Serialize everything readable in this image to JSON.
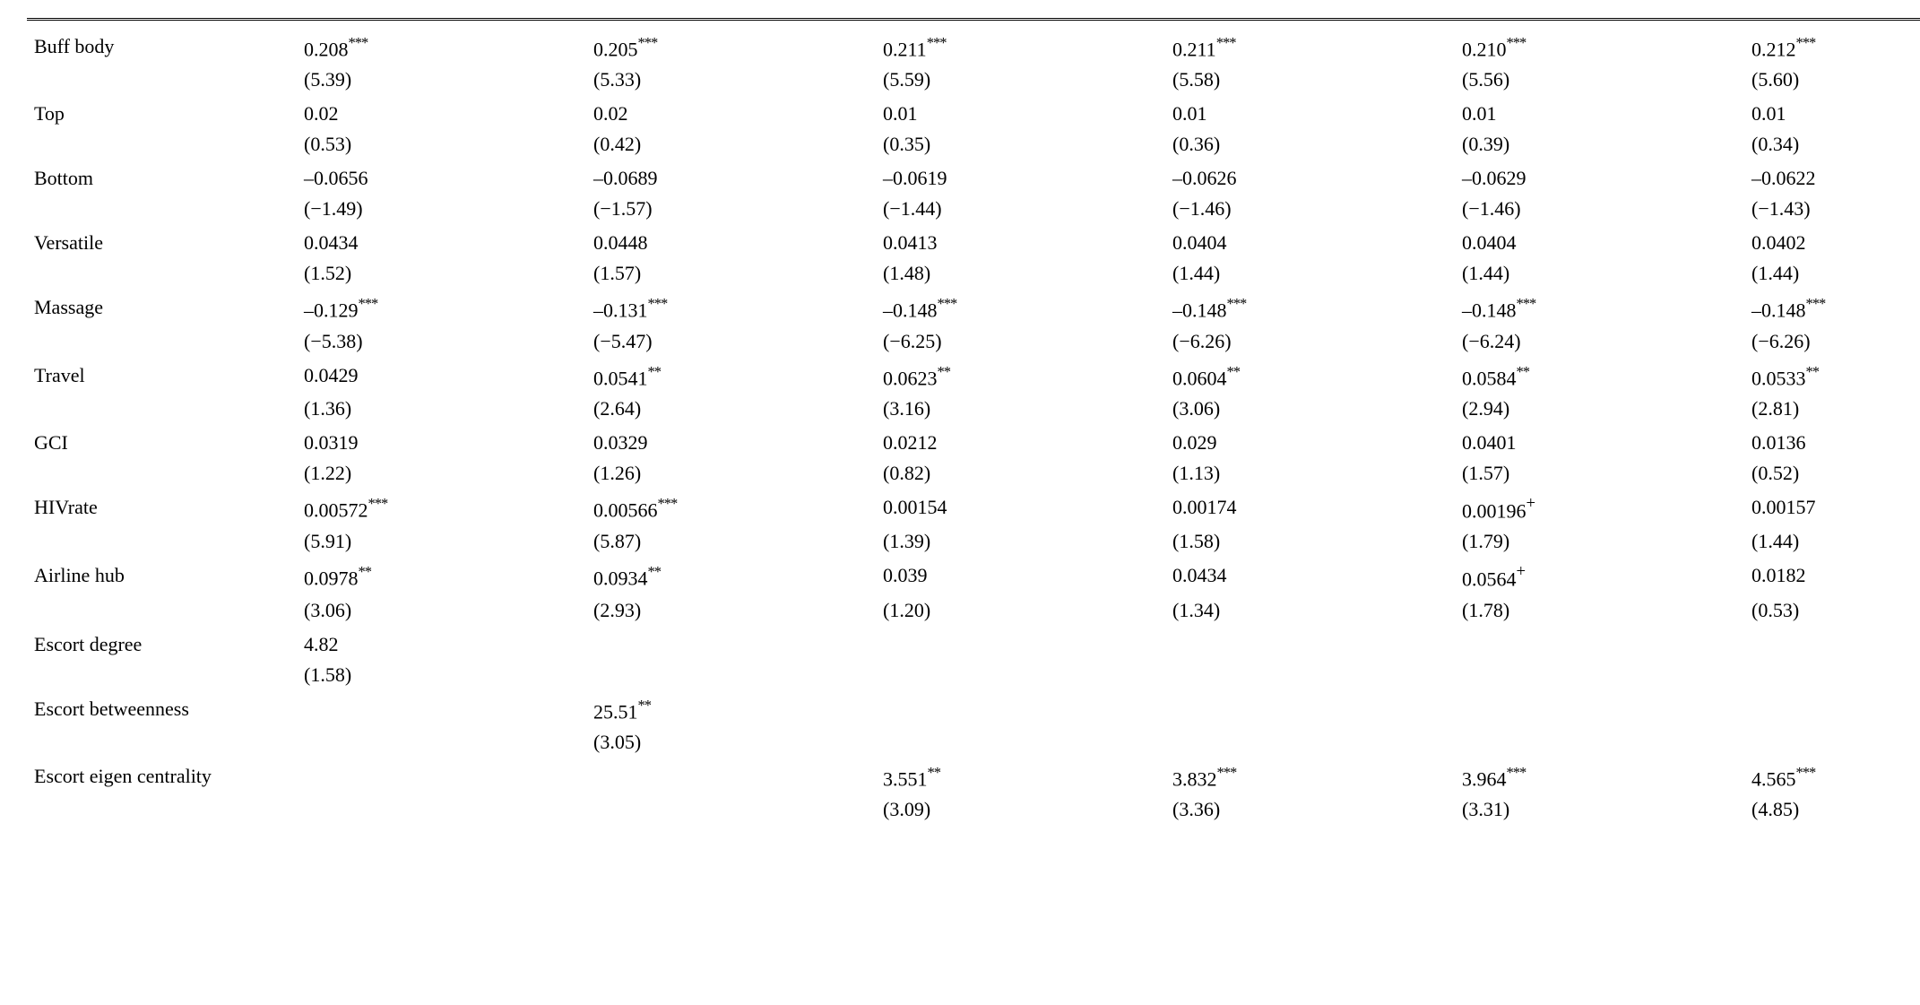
{
  "table": {
    "columns": 6,
    "rows": [
      {
        "label": "Buff body",
        "coef": [
          "0.208",
          "0.205",
          "0.211",
          "0.211",
          "0.210",
          "0.212"
        ],
        "sig": [
          "***",
          "***",
          "***",
          "***",
          "***",
          "***"
        ],
        "se": [
          "(5.39)",
          "(5.33)",
          "(5.59)",
          "(5.58)",
          "(5.56)",
          "(5.60)"
        ]
      },
      {
        "label": "Top",
        "coef": [
          "0.02",
          "0.02",
          "0.01",
          "0.01",
          "0.01",
          "0.01"
        ],
        "sig": [
          "",
          "",
          "",
          "",
          "",
          ""
        ],
        "se": [
          "(0.53)",
          "(0.42)",
          "(0.35)",
          "(0.36)",
          "(0.39)",
          "(0.34)"
        ]
      },
      {
        "label": "Bottom",
        "coef": [
          "–0.0656",
          "–0.0689",
          "–0.0619",
          "–0.0626",
          "–0.0629",
          "–0.0622"
        ],
        "sig": [
          "",
          "",
          "",
          "",
          "",
          ""
        ],
        "se": [
          "(−1.49)",
          "(−1.57)",
          "(−1.44)",
          "(−1.46)",
          "(−1.46)",
          "(−1.43)"
        ]
      },
      {
        "label": "Versatile",
        "coef": [
          "0.0434",
          "0.0448",
          "0.0413",
          "0.0404",
          "0.0404",
          "0.0402"
        ],
        "sig": [
          "",
          "",
          "",
          "",
          "",
          ""
        ],
        "se": [
          "(1.52)",
          "(1.57)",
          "(1.48)",
          "(1.44)",
          "(1.44)",
          "(1.44)"
        ]
      },
      {
        "label": "Massage",
        "coef": [
          "–0.129",
          "–0.131",
          "–0.148",
          "–0.148",
          "–0.148",
          "–0.148"
        ],
        "sig": [
          "***",
          "***",
          "***",
          "***",
          "***",
          "***"
        ],
        "se": [
          "(−5.38)",
          "(−5.47)",
          "(−6.25)",
          "(−6.26)",
          "(−6.24)",
          "(−6.26)"
        ]
      },
      {
        "label": "Travel",
        "coef": [
          "0.0429",
          "0.0541",
          "0.0623",
          "0.0604",
          "0.0584",
          "0.0533"
        ],
        "sig": [
          "",
          "**",
          "**",
          "**",
          "**",
          "**"
        ],
        "se": [
          "(1.36)",
          "(2.64)",
          "(3.16)",
          "(3.06)",
          "(2.94)",
          "(2.81)"
        ]
      },
      {
        "label": "GCI",
        "coef": [
          "0.0319",
          "0.0329",
          "0.0212",
          "0.029",
          "0.0401",
          "0.0136"
        ],
        "sig": [
          "",
          "",
          "",
          "",
          "",
          ""
        ],
        "se": [
          "(1.22)",
          "(1.26)",
          "(0.82)",
          "(1.13)",
          "(1.57)",
          "(0.52)"
        ]
      },
      {
        "label": "HIVrate",
        "coef": [
          "0.00572",
          "0.00566",
          "0.00154",
          "0.00174",
          "0.00196",
          "0.00157"
        ],
        "sig": [
          "***",
          "***",
          "",
          "",
          "+",
          ""
        ],
        "se": [
          "(5.91)",
          "(5.87)",
          "(1.39)",
          "(1.58)",
          "(1.79)",
          "(1.44)"
        ]
      },
      {
        "label": "Airline hub",
        "coef": [
          "0.0978",
          "0.0934",
          "0.039",
          "0.0434",
          "0.0564",
          "0.0182"
        ],
        "sig": [
          "**",
          "**",
          "",
          "",
          "+",
          ""
        ],
        "se": [
          "(3.06)",
          "(2.93)",
          "(1.20)",
          "(1.34)",
          "(1.78)",
          "(0.53)"
        ]
      },
      {
        "label": "Escort degree",
        "coef": [
          "4.82",
          "",
          "",
          "",
          "",
          ""
        ],
        "sig": [
          "",
          "",
          "",
          "",
          "",
          ""
        ],
        "se": [
          "(1.58)",
          "",
          "",
          "",
          "",
          ""
        ]
      },
      {
        "label": "Escort betweenness",
        "coef": [
          "",
          "25.51",
          "",
          "",
          "",
          ""
        ],
        "sig": [
          "",
          "**",
          "",
          "",
          "",
          ""
        ],
        "se": [
          "",
          "(3.05)",
          "",
          "",
          "",
          ""
        ]
      },
      {
        "label": "Escort eigen centrality",
        "coef": [
          "",
          "",
          "3.551",
          "3.832",
          "3.964",
          "4.565"
        ],
        "sig": [
          "",
          "",
          "**",
          "***",
          "***",
          "***"
        ],
        "se": [
          "",
          "",
          "(3.09)",
          "(3.36)",
          "(3.31)",
          "(4.85)"
        ]
      }
    ],
    "font_family": "Times New Roman",
    "font_size_pt": 22,
    "text_color": "#000000",
    "background_color": "#ffffff",
    "border_style": "double-top-rule"
  }
}
